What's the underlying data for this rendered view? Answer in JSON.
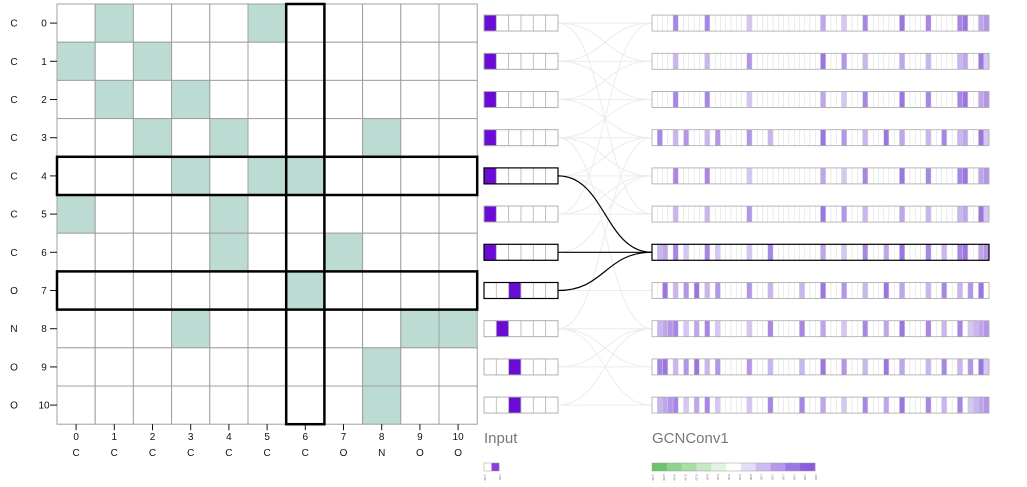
{
  "matrix": {
    "row_atoms": [
      "C",
      "C",
      "C",
      "C",
      "C",
      "C",
      "C",
      "O",
      "N",
      "O",
      "O"
    ],
    "row_indices": [
      "0",
      "1",
      "2",
      "3",
      "4",
      "5",
      "6",
      "7",
      "8",
      "9",
      "10"
    ],
    "col_indices": [
      "0",
      "1",
      "2",
      "3",
      "4",
      "5",
      "6",
      "7",
      "8",
      "9",
      "10"
    ],
    "col_atoms": [
      "C",
      "C",
      "C",
      "C",
      "C",
      "C",
      "C",
      "O",
      "N",
      "O",
      "O"
    ],
    "filled_cells": [
      [
        0,
        1
      ],
      [
        0,
        5
      ],
      [
        1,
        0
      ],
      [
        1,
        2
      ],
      [
        2,
        1
      ],
      [
        2,
        3
      ],
      [
        3,
        2
      ],
      [
        3,
        4
      ],
      [
        3,
        8
      ],
      [
        4,
        3
      ],
      [
        4,
        5
      ],
      [
        4,
        6
      ],
      [
        5,
        0
      ],
      [
        5,
        4
      ],
      [
        6,
        4
      ],
      [
        6,
        7
      ],
      [
        7,
        6
      ],
      [
        8,
        3
      ],
      [
        8,
        9
      ],
      [
        8,
        10
      ],
      [
        9,
        8
      ],
      [
        10,
        8
      ]
    ],
    "highlight_rows": [
      4,
      7
    ],
    "highlight_column": 6,
    "fill_color": "#bcdcd3"
  },
  "layers": [
    {
      "title": "Input",
      "cell_count": 6,
      "active_cells": [
        [
          0
        ],
        [
          0
        ],
        [
          0
        ],
        [
          0
        ],
        [
          0
        ],
        [
          0
        ],
        [
          0
        ],
        [
          2
        ],
        [
          1
        ],
        [
          2
        ],
        [
          2
        ]
      ],
      "color": "#6a0dd4"
    },
    {
      "title": "GCNConv1",
      "cell_count": 64,
      "active_cells": [
        [
          4,
          10,
          18,
          32,
          36,
          40,
          47,
          52,
          58,
          59,
          62,
          63
        ],
        [
          4,
          10,
          18,
          32,
          36,
          40,
          47,
          52,
          58,
          59,
          62,
          63
        ],
        [
          4,
          10,
          18,
          32,
          36,
          40,
          47,
          52,
          58,
          59,
          62,
          63
        ],
        [
          1,
          4,
          6,
          10,
          12,
          18,
          22,
          32,
          36,
          40,
          44,
          47,
          52,
          55,
          58,
          59,
          62,
          63
        ],
        [
          4,
          10,
          18,
          32,
          36,
          40,
          47,
          52,
          58,
          59,
          62,
          63
        ],
        [
          4,
          10,
          18,
          32,
          36,
          40,
          47,
          52,
          58,
          59,
          62,
          63
        ],
        [
          1,
          2,
          4,
          6,
          10,
          12,
          18,
          22,
          32,
          36,
          40,
          44,
          47,
          52,
          55,
          58,
          59,
          62,
          63
        ],
        [
          2,
          4,
          6,
          8,
          10,
          12,
          18,
          22,
          28,
          32,
          36,
          40,
          44,
          47,
          52,
          55,
          58,
          60,
          62
        ],
        [
          1,
          2,
          3,
          4,
          6,
          8,
          10,
          12,
          18,
          22,
          28,
          32,
          36,
          40,
          44,
          47,
          52,
          55,
          58,
          60,
          61,
          62,
          63
        ],
        [
          1,
          2,
          4,
          6,
          8,
          10,
          12,
          18,
          22,
          28,
          32,
          36,
          40,
          44,
          47,
          52,
          55,
          58,
          60,
          62,
          63
        ],
        [
          1,
          2,
          3,
          4,
          6,
          8,
          10,
          12,
          18,
          22,
          28,
          32,
          36,
          40,
          44,
          47,
          52,
          55,
          58,
          60,
          61,
          62,
          63
        ]
      ],
      "highlight_row": 6,
      "color": "#8a5ddc"
    }
  ],
  "links": {
    "from_rows": [
      4,
      6,
      7
    ],
    "to_row": 6
  },
  "scales": {
    "input": {
      "colors": [
        "#ffffff",
        "#8a3ee0"
      ],
      "ticks": [
        "-1.00",
        "1.00"
      ]
    },
    "gcn": {
      "colors": [
        "#6cc36c",
        "#8dd38d",
        "#a8dea8",
        "#c5e9c5",
        "#e2f4e2",
        "#ffffff",
        "#e7dcf8",
        "#cfbaf2",
        "#b698ec",
        "#9e76e6",
        "#8a5ddc"
      ],
      "ticks": [
        "-1.00",
        "-0.80",
        "-0.60",
        "-0.40",
        "-0.20",
        "0.00",
        "0.20",
        "0.40",
        "0.60",
        "0.80",
        "1.00",
        "1.20",
        "1.40",
        "1.60",
        "1.80",
        "2.00"
      ]
    }
  }
}
